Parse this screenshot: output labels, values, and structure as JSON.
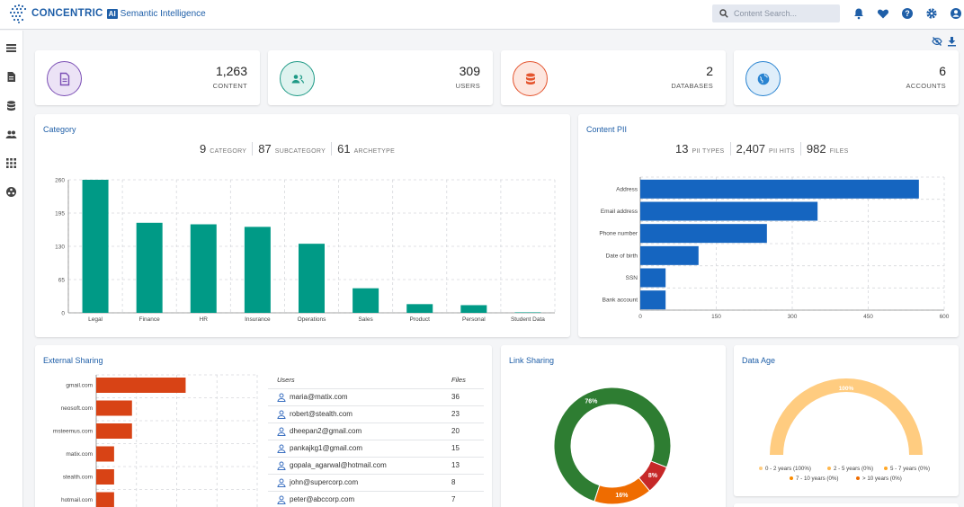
{
  "header": {
    "brand": "CONCENTRIC",
    "ai_badge": "AI",
    "product": "Semantic Intelligence",
    "search_placeholder": "Content Search...",
    "icons": [
      "bell-icon",
      "heart-icon",
      "help-icon",
      "settings-icon",
      "user-icon"
    ]
  },
  "sidebar": {
    "icons": [
      "list-icon",
      "document-icon",
      "database-icon",
      "users-icon",
      "grid-icon",
      "target-icon"
    ]
  },
  "toolbar_icons": [
    "visibility-off-icon",
    "download-icon"
  ],
  "stats": [
    {
      "value": "1,263",
      "label": "CONTENT",
      "icon": "document-icon",
      "color": "#7b4fb5",
      "bg": "#ece3f6"
    },
    {
      "value": "309",
      "label": "USERS",
      "icon": "users-icon",
      "color": "#1e9a86",
      "bg": "#dff3ef"
    },
    {
      "value": "2",
      "label": "DATABASES",
      "icon": "database-icon",
      "color": "#e4542e",
      "bg": "#fde6df"
    },
    {
      "value": "6",
      "label": "ACCOUNTS",
      "icon": "globe-icon",
      "color": "#2a84d1",
      "bg": "#dfeefa"
    }
  ],
  "category": {
    "title": "Category",
    "metrics": [
      {
        "value": "9",
        "label": "CATEGORY"
      },
      {
        "value": "87",
        "label": "SUBCATEGORY"
      },
      {
        "value": "61",
        "label": "ARCHETYPE"
      }
    ]
  },
  "content_pii": {
    "title": "Content PII",
    "metrics": [
      {
        "value": "13",
        "label": "PII TYPES"
      },
      {
        "value": "2,407",
        "label": "PII HITS"
      },
      {
        "value": "982",
        "label": "FILES"
      }
    ]
  },
  "external_sharing": {
    "title": "External Sharing",
    "table_headers": {
      "users": "Users",
      "files": "Files"
    },
    "rows": [
      {
        "user": "maria@matix.com",
        "files": "36"
      },
      {
        "user": "robert@stealth.com",
        "files": "23"
      },
      {
        "user": "dheepan2@gmail.com",
        "files": "20"
      },
      {
        "user": "pankajkg1@gmail.com",
        "files": "15"
      },
      {
        "user": "gopala_agarwal@hotmail.com",
        "files": "13"
      },
      {
        "user": "john@supercorp.com",
        "files": "8"
      },
      {
        "user": "peter@abccorp.com",
        "files": "7"
      }
    ]
  },
  "link_sharing": {
    "title": "Link Sharing"
  },
  "data_age": {
    "title": "Data Age"
  },
  "chart_data": [
    {
      "id": "category",
      "type": "bar",
      "categories": [
        "Legal",
        "Finance",
        "HR",
        "Insurance",
        "Operations",
        "Sales",
        "Product",
        "Personal",
        "Student Data"
      ],
      "values": [
        260,
        176,
        173,
        168,
        135,
        48,
        17,
        15,
        1
      ],
      "yticks": [
        "0",
        "65",
        "130",
        "195",
        "260"
      ],
      "ylim": [
        0,
        260
      ],
      "color": "#009a86",
      "grid": true
    },
    {
      "id": "content_pii",
      "type": "bar",
      "orientation": "horizontal",
      "categories": [
        "Address",
        "Email address",
        "Phone number",
        "Date of birth",
        "SSN",
        "Bank account"
      ],
      "values": [
        550,
        350,
        250,
        115,
        50,
        50
      ],
      "xticks": [
        "0",
        "150",
        "300",
        "450",
        "600"
      ],
      "xlim": [
        0,
        600
      ],
      "color": "#1565c0",
      "grid": true
    },
    {
      "id": "external_sharing",
      "type": "bar",
      "orientation": "horizontal",
      "categories": [
        "gmail.com",
        "neosoft.com",
        "msteemus.com",
        "matix.com",
        "stealth.com",
        "hotmail.com"
      ],
      "values": [
        100,
        40,
        40,
        20,
        20,
        20
      ],
      "xlim": [
        0,
        180
      ],
      "color": "#d84315",
      "grid": true
    },
    {
      "id": "link_sharing",
      "type": "pie",
      "labels": [
        "76%",
        "16%",
        "8%"
      ],
      "values": [
        76,
        16,
        8
      ],
      "colors": [
        "#2e7d32",
        "#ef6c00",
        "#c62828"
      ]
    },
    {
      "id": "data_age",
      "type": "pie",
      "labels": [
        "100%"
      ],
      "values": [
        100
      ],
      "colors": [
        "#ffcc80"
      ],
      "legend": [
        {
          "label": "0 - 2 years (100%)",
          "color": "#ffcc80"
        },
        {
          "label": "2 - 5 years (0%)",
          "color": "#ffb74d"
        },
        {
          "label": "5 - 7 years (0%)",
          "color": "#ffa726"
        },
        {
          "label": "7 - 10 years (0%)",
          "color": "#fb8c00"
        },
        {
          "label": "> 10 years (0%)",
          "color": "#ef6c00"
        }
      ]
    }
  ]
}
